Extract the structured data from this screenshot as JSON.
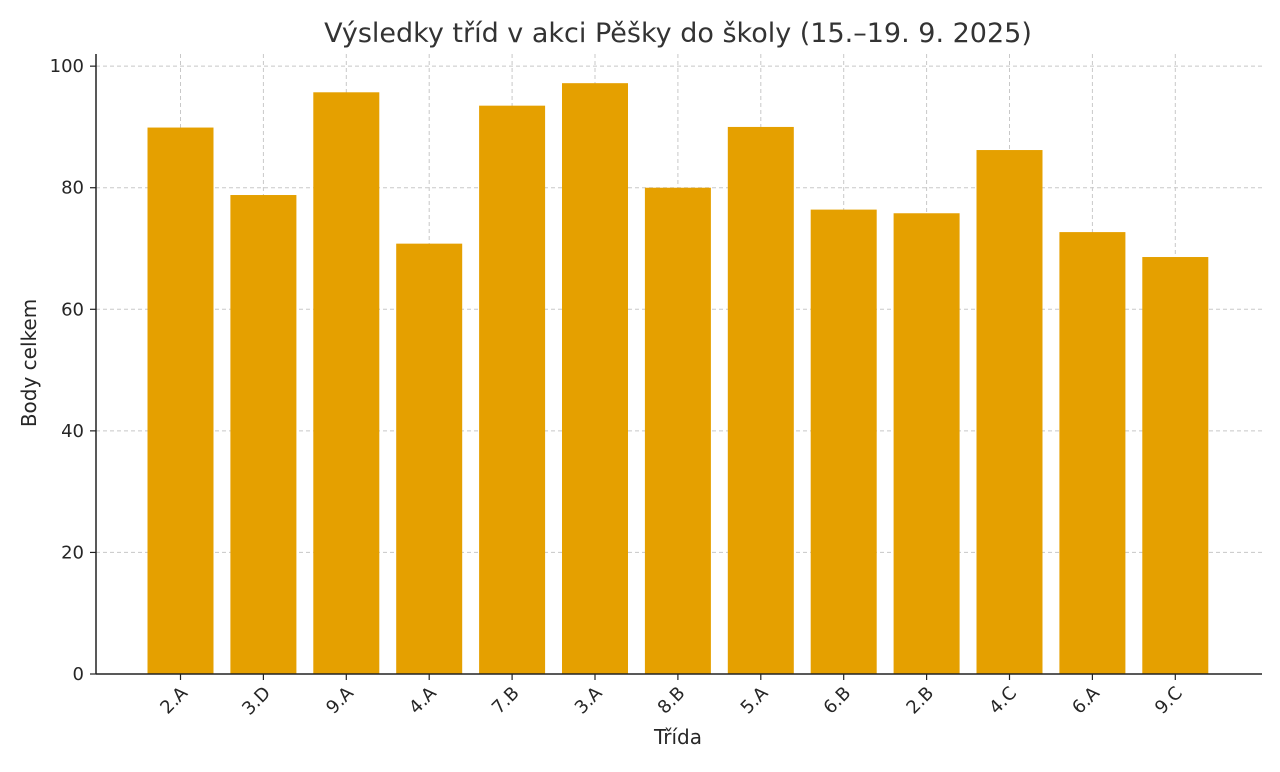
{
  "chart_data": {
    "type": "bar",
    "title": "Výsledky tříd v akci Pěšky do školy (15.–19. 9. 2025)",
    "xlabel": "Třída",
    "ylabel": "Body celkem",
    "categories": [
      "2.A",
      "3.D",
      "9.A",
      "4.A",
      "7.B",
      "3.A",
      "8.B",
      "5.A",
      "6.B",
      "2.B",
      "4.C",
      "6.A",
      "9.C"
    ],
    "values": [
      89.9,
      78.8,
      95.7,
      70.8,
      93.5,
      97.2,
      80.0,
      90.0,
      76.4,
      75.8,
      86.2,
      72.7,
      68.6
    ],
    "ylim": [
      0,
      102
    ],
    "yticks": [
      0,
      20,
      40,
      60,
      80,
      100
    ],
    "grid": true,
    "bar_color": "#E5A000",
    "xtick_rotation": -45
  }
}
